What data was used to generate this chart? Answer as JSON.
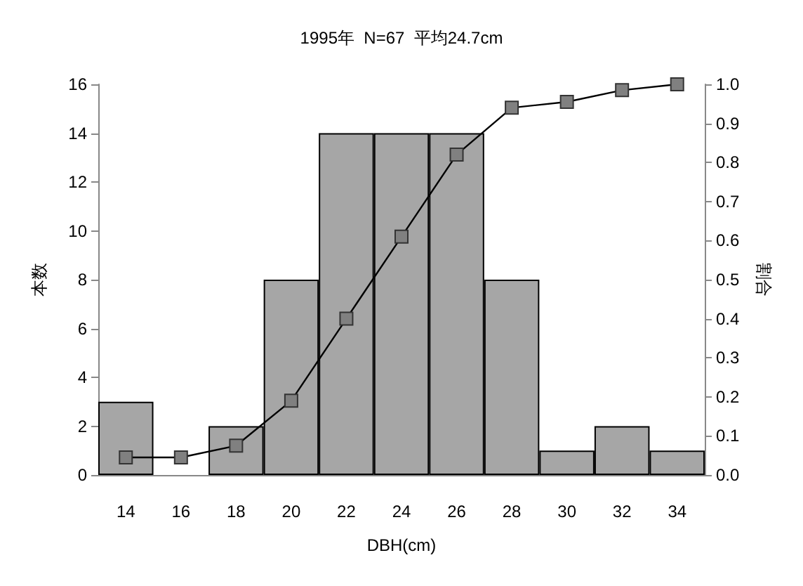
{
  "chart_data": {
    "type": "bar",
    "title": "1995年  N=67  平均24.7cm",
    "xlabel": "DBH(cm)",
    "ylabel": "本数",
    "y2label": "割合",
    "categories": [
      "14",
      "16",
      "18",
      "20",
      "22",
      "24",
      "26",
      "28",
      "30",
      "32",
      "34"
    ],
    "series": [
      {
        "color": "#a6a6a6",
        "values": [
          3,
          0,
          2,
          8,
          14,
          14,
          14,
          8,
          1,
          2,
          1
        ]
      },
      {
        "type": "line",
        "axis": "y2",
        "color": "#808080",
        "marker": "square",
        "values": [
          0.045,
          0.045,
          0.075,
          0.19,
          0.4,
          0.61,
          0.82,
          0.94,
          0.955,
          0.985,
          1.0
        ]
      }
    ],
    "ylim": [
      0,
      16
    ],
    "yticks": [
      0,
      2,
      4,
      6,
      8,
      10,
      12,
      14,
      16
    ],
    "y2lim": [
      0,
      1
    ],
    "y2ticks": [
      {
        "value": 0,
        "label": "0.0"
      },
      0.1,
      0.2,
      0.3,
      0.4,
      0.5,
      0.6,
      0.7,
      0.8,
      0.9,
      {
        "value": 1,
        "label": "1.0"
      }
    ],
    "grid": false
  }
}
